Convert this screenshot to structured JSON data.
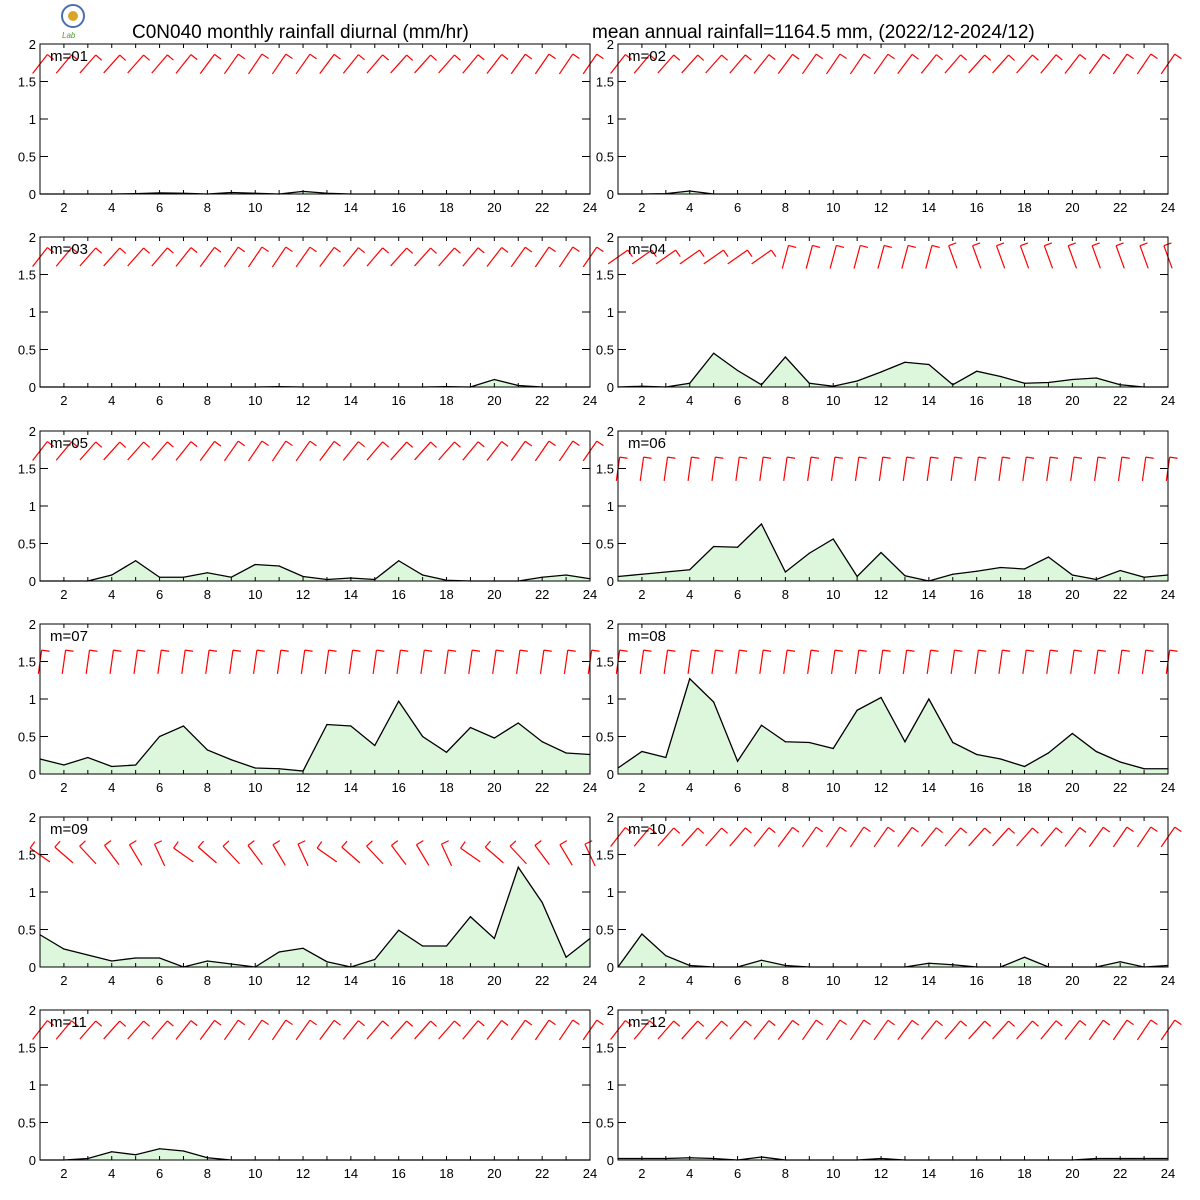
{
  "header": {
    "title_left": "C0N040 monthly rainfall diurnal (mm/hr)",
    "title_right": "mean annual rainfall=1164.5 mm, (2022/12-2024/12)",
    "logo_text": "Lab"
  },
  "colors": {
    "fill": "#ddf7dd",
    "line": "#000000",
    "wind": "#ff0000",
    "axis": "#000000"
  },
  "chart_data": {
    "type": "area",
    "panel_count": 12,
    "x": [
      1,
      2,
      3,
      4,
      5,
      6,
      7,
      8,
      9,
      10,
      11,
      12,
      13,
      14,
      15,
      16,
      17,
      18,
      19,
      20,
      21,
      22,
      23,
      24
    ],
    "xticks": [
      2,
      4,
      6,
      8,
      10,
      12,
      14,
      16,
      18,
      20,
      22,
      24
    ],
    "ylim": [
      0,
      2
    ],
    "yticks": [
      "0",
      "0.5",
      "1",
      "1.5",
      "2"
    ],
    "grid": false,
    "wind_barbs_shown": true,
    "panels": [
      {
        "label": "m=01",
        "values": [
          0,
          0,
          0,
          0,
          0.005,
          0.015,
          0.01,
          0,
          0.02,
          0.01,
          0,
          0.035,
          0.01,
          0,
          0,
          0,
          0,
          0,
          0,
          0,
          0,
          0,
          0,
          0
        ],
        "wind": "southwest"
      },
      {
        "label": "m=02",
        "values": [
          0,
          0,
          0.005,
          0.04,
          0,
          0,
          0,
          0,
          0,
          0,
          0,
          0,
          0,
          0,
          0,
          0,
          0,
          0,
          0,
          0,
          0,
          0,
          0,
          0
        ],
        "wind": "southwest"
      },
      {
        "label": "m=03",
        "values": [
          0,
          0,
          0,
          0,
          0,
          0,
          0,
          0,
          0,
          0,
          0.005,
          0,
          0,
          0,
          0,
          0,
          0,
          0.005,
          0,
          0.1,
          0.02,
          0,
          0,
          0
        ],
        "wind": "southwest"
      },
      {
        "label": "m=04",
        "values": [
          0,
          0.01,
          0,
          0.05,
          0.45,
          0.22,
          0.03,
          0.4,
          0.05,
          0.01,
          0.08,
          0.2,
          0.33,
          0.3,
          0.03,
          0.21,
          0.14,
          0.05,
          0.06,
          0.1,
          0.12,
          0.03,
          0,
          0
        ],
        "wind": "variable"
      },
      {
        "label": "m=05",
        "values": [
          0,
          0,
          0,
          0.08,
          0.27,
          0.05,
          0.05,
          0.11,
          0.05,
          0.22,
          0.2,
          0.06,
          0.02,
          0.04,
          0.02,
          0.27,
          0.08,
          0.01,
          0,
          0,
          0,
          0.05,
          0.08,
          0.03
        ],
        "wind": "southwest"
      },
      {
        "label": "m=06",
        "values": [
          0.06,
          0.09,
          0.12,
          0.15,
          0.46,
          0.45,
          0.76,
          0.12,
          0.37,
          0.56,
          0.06,
          0.38,
          0.07,
          0,
          0.09,
          0.13,
          0.18,
          0.16,
          0.32,
          0.08,
          0.02,
          0.14,
          0.05,
          0.08
        ],
        "wind": "southerly"
      },
      {
        "label": "m=07",
        "values": [
          0.2,
          0.12,
          0.22,
          0.1,
          0.12,
          0.5,
          0.64,
          0.32,
          0.19,
          0.08,
          0.07,
          0.04,
          0.66,
          0.64,
          0.38,
          0.97,
          0.5,
          0.29,
          0.62,
          0.48,
          0.68,
          0.43,
          0.28,
          0.26
        ],
        "wind": "southerly"
      },
      {
        "label": "m=08",
        "values": [
          0.08,
          0.3,
          0.22,
          1.27,
          0.96,
          0.17,
          0.65,
          0.43,
          0.42,
          0.34,
          0.85,
          1.02,
          0.43,
          1.0,
          0.42,
          0.26,
          0.2,
          0.1,
          0.28,
          0.54,
          0.3,
          0.16,
          0.07,
          0.07
        ],
        "wind": "southerly"
      },
      {
        "label": "m=09",
        "values": [
          0.43,
          0.24,
          0.16,
          0.08,
          0.12,
          0.12,
          0,
          0.08,
          0.04,
          0,
          0.2,
          0.25,
          0.07,
          0,
          0.1,
          0.49,
          0.28,
          0.28,
          0.67,
          0.38,
          1.33,
          0.86,
          0.13,
          0.38
        ],
        "wind": "easterly"
      },
      {
        "label": "m=10",
        "values": [
          0,
          0.44,
          0.15,
          0.02,
          0,
          0,
          0.09,
          0.02,
          0,
          0,
          0,
          0,
          0,
          0.05,
          0.03,
          0,
          0,
          0.13,
          0,
          0,
          0,
          0.07,
          0,
          0.02
        ],
        "wind": "southwest"
      },
      {
        "label": "m=11",
        "values": [
          0,
          0,
          0.02,
          0.11,
          0.07,
          0.15,
          0.12,
          0.03,
          0,
          0,
          0,
          0,
          0,
          0,
          0,
          0,
          0,
          0,
          0,
          0,
          0,
          0,
          0,
          0
        ],
        "wind": "southwest"
      },
      {
        "label": "m=12",
        "values": [
          0.02,
          0.02,
          0.02,
          0.03,
          0.02,
          0,
          0.04,
          0,
          0,
          0,
          0,
          0.02,
          0,
          0,
          0,
          0,
          0,
          0,
          0,
          0,
          0.02,
          0.02,
          0.02,
          0.02
        ],
        "wind": "southwest"
      }
    ]
  }
}
